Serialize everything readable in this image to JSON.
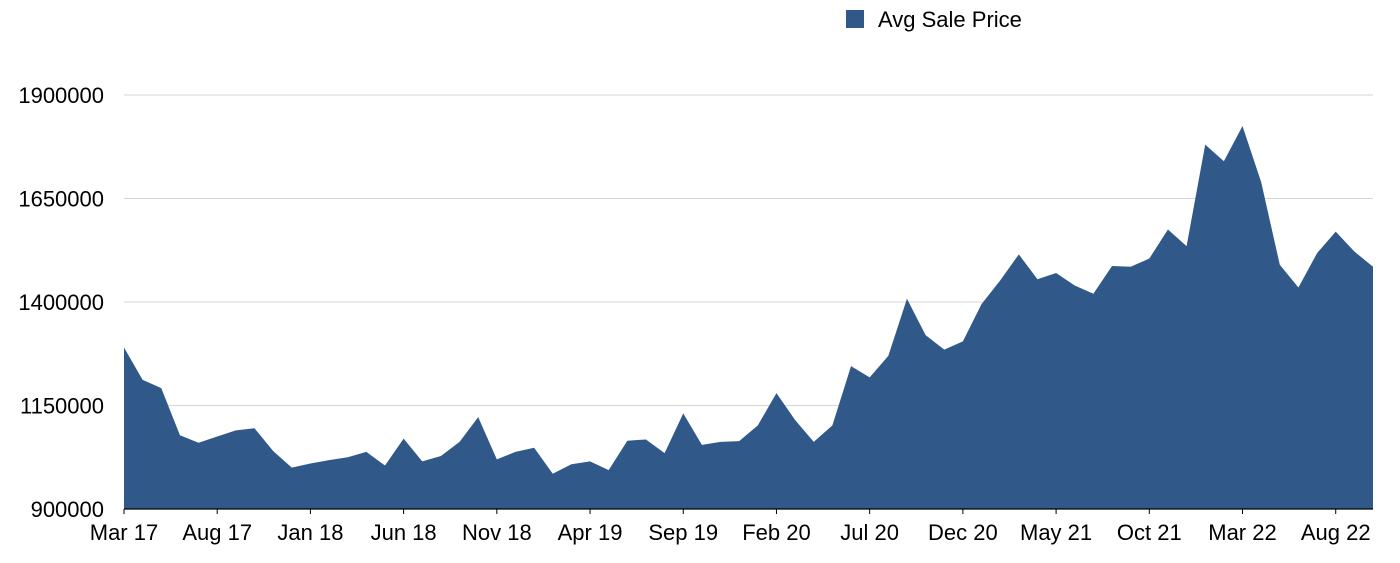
{
  "chart_data": {
    "type": "area",
    "title": "",
    "xlabel": "",
    "ylabel": "",
    "ylim": [
      900000,
      1900000
    ],
    "y_ticks": [
      900000,
      1150000,
      1400000,
      1650000,
      1900000
    ],
    "x_tick_labels": [
      "Mar 17",
      "Aug 17",
      "Jan 18",
      "Jun 18",
      "Nov 18",
      "Apr 19",
      "Sep 19",
      "Feb 20",
      "Jul 20",
      "Dec 20",
      "May 21",
      "Oct 21",
      "Mar 22",
      "Aug 22"
    ],
    "grid": true,
    "legend_position": "top-right",
    "color": "#30598a",
    "series": [
      {
        "name": "Avg Sale Price",
        "x": [
          "Mar 17",
          "Apr 17",
          "May 17",
          "Jun 17",
          "Jul 17",
          "Aug 17",
          "Sep 17",
          "Oct 17",
          "Nov 17",
          "Dec 17",
          "Jan 18",
          "Feb 18",
          "Mar 18",
          "Apr 18",
          "May 18",
          "Jun 18",
          "Jul 18",
          "Aug 18",
          "Sep 18",
          "Oct 18",
          "Nov 18",
          "Dec 18",
          "Jan 19",
          "Feb 19",
          "Mar 19",
          "Apr 19",
          "May 19",
          "Jun 19",
          "Jul 19",
          "Aug 19",
          "Sep 19",
          "Oct 19",
          "Nov 19",
          "Dec 19",
          "Jan 20",
          "Feb 20",
          "Mar 20",
          "Apr 20",
          "May 20",
          "Jun 20",
          "Jul 20",
          "Aug 20",
          "Sep 20",
          "Oct 20",
          "Nov 20",
          "Dec 20",
          "Jan 21",
          "Feb 21",
          "Mar 21",
          "Apr 21",
          "May 21",
          "Jun 21",
          "Jul 21",
          "Aug 21",
          "Sep 21",
          "Oct 21",
          "Nov 21",
          "Dec 21",
          "Jan 22",
          "Feb 22",
          "Mar 22",
          "Apr 22",
          "May 22",
          "Jun 22",
          "Jul 22",
          "Aug 22",
          "Sep 22",
          "Oct 22"
        ],
        "values": [
          1290000,
          1212000,
          1192000,
          1078000,
          1060000,
          1075000,
          1090000,
          1095000,
          1040000,
          1000000,
          1010000,
          1018000,
          1025000,
          1038000,
          1005000,
          1070000,
          1015000,
          1028000,
          1062000,
          1122000,
          1020000,
          1038000,
          1048000,
          985000,
          1008000,
          1015000,
          994000,
          1065000,
          1068000,
          1035000,
          1131000,
          1055000,
          1062000,
          1064000,
          1102000,
          1180000,
          1115000,
          1062000,
          1102000,
          1245000,
          1218000,
          1270000,
          1408000,
          1320000,
          1285000,
          1305000,
          1395000,
          1452000,
          1515000,
          1455000,
          1470000,
          1440000,
          1420000,
          1487000,
          1485000,
          1505000,
          1575000,
          1535000,
          1780000,
          1740000,
          1825000,
          1690000,
          1490000,
          1435000,
          1518000,
          1570000,
          1522000,
          1485000
        ]
      }
    ]
  }
}
